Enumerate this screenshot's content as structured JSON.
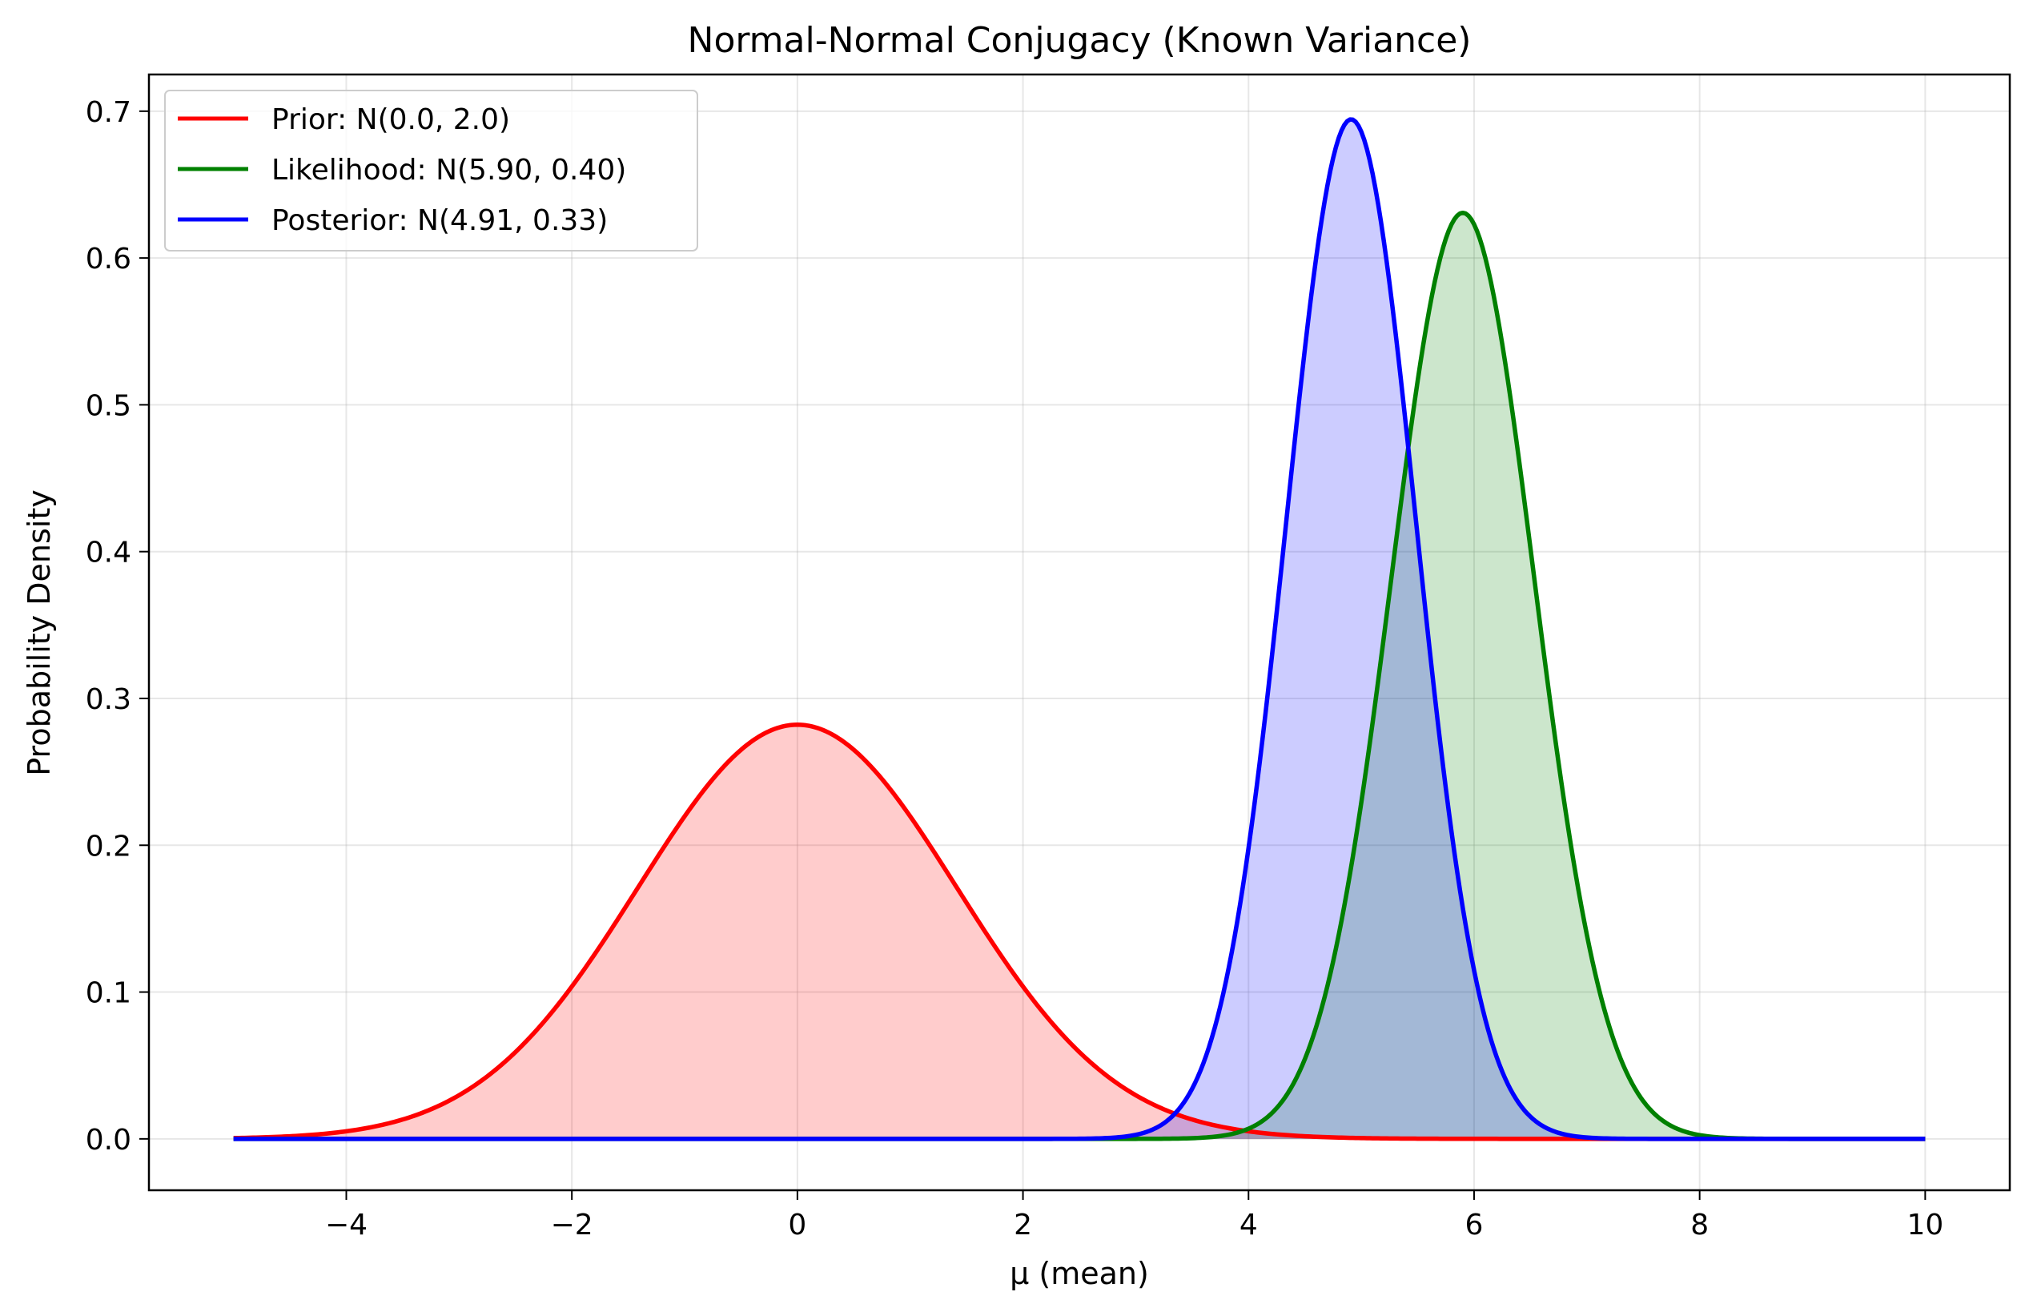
{
  "chart_data": {
    "type": "line",
    "title": "Normal-Normal Conjugacy (Known Variance)",
    "xlabel": "μ (mean)",
    "ylabel": "Probability Density",
    "xlim": [
      -5.75,
      10.75
    ],
    "ylim": [
      -0.035,
      0.725
    ],
    "x_range": [
      -5,
      10
    ],
    "xticks": [
      -4,
      -2,
      0,
      2,
      4,
      6,
      8,
      10
    ],
    "xtick_labels": [
      "−4",
      "−2",
      "0",
      "2",
      "4",
      "6",
      "8",
      "10"
    ],
    "yticks": [
      0.0,
      0.1,
      0.2,
      0.3,
      0.4,
      0.5,
      0.6,
      0.7
    ],
    "ytick_labels": [
      "0.0",
      "0.1",
      "0.2",
      "0.3",
      "0.4",
      "0.5",
      "0.6",
      "0.7"
    ],
    "grid": true,
    "legend_position": "top-left",
    "series": [
      {
        "name": "Prior: N(0.0, 2.0)",
        "distribution": "normal",
        "mean": 0.0,
        "variance": 2.0,
        "color": "#ff0000",
        "fill_color": "rgba(255,0,0,0.2)"
      },
      {
        "name": "Likelihood: N(5.90, 0.40)",
        "distribution": "normal",
        "mean": 5.9,
        "variance": 0.4,
        "color": "#008000",
        "fill_color": "rgba(0,128,0,0.2)"
      },
      {
        "name": "Posterior: N(4.91, 0.33)",
        "distribution": "normal",
        "mean": 4.91,
        "variance": 0.33,
        "color": "#0000ff",
        "fill_color": "rgba(0,0,255,0.2)"
      }
    ]
  }
}
